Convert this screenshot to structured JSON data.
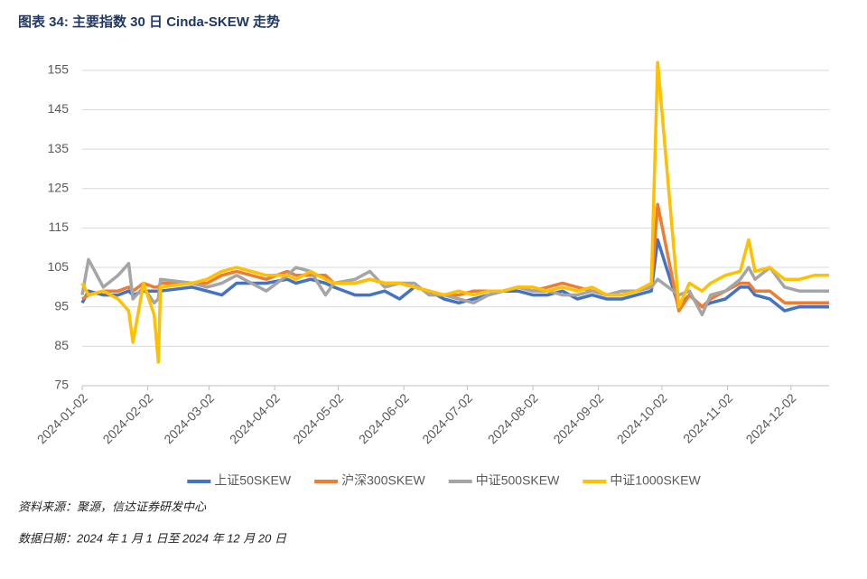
{
  "title": "图表 34:  主要指数 30 日 Cinda-SKEW 走势",
  "source": "资料来源：聚源，信达证券研发中心",
  "date_note": "数据日期：2024 年 1 月 1 日至 2024 年 12 月 20 日",
  "chart_data": {
    "type": "line",
    "x": [
      "2024-01-02",
      "2024-01-05",
      "2024-01-12",
      "2024-01-19",
      "2024-01-24",
      "2024-01-26",
      "2024-01-31",
      "2024-02-05",
      "2024-02-07",
      "2024-02-08",
      "2024-02-23",
      "2024-03-01",
      "2024-03-08",
      "2024-03-15",
      "2024-03-22",
      "2024-03-29",
      "2024-04-08",
      "2024-04-12",
      "2024-04-19",
      "2024-04-26",
      "2024-04-30",
      "2024-05-10",
      "2024-05-17",
      "2024-05-24",
      "2024-05-31",
      "2024-06-07",
      "2024-06-14",
      "2024-06-21",
      "2024-06-28",
      "2024-07-05",
      "2024-07-12",
      "2024-07-19",
      "2024-07-26",
      "2024-08-02",
      "2024-08-09",
      "2024-08-16",
      "2024-08-23",
      "2024-08-30",
      "2024-09-06",
      "2024-09-13",
      "2024-09-20",
      "2024-09-27",
      "2024-09-30",
      "2024-10-10",
      "2024-10-15",
      "2024-10-21",
      "2024-10-25",
      "2024-11-01",
      "2024-11-08",
      "2024-11-12",
      "2024-11-15",
      "2024-11-22",
      "2024-11-29",
      "2024-12-06",
      "2024-12-13",
      "2024-12-20"
    ],
    "series": [
      {
        "name": "上证50SKEW",
        "color": "#4472c4",
        "values": [
          96,
          99,
          98,
          98,
          99,
          98,
          99,
          99,
          99,
          99,
          100,
          99,
          98,
          101,
          101,
          101,
          102,
          101,
          102,
          101,
          100,
          98,
          98,
          99,
          97,
          100,
          99,
          97,
          96,
          97,
          98,
          99,
          99,
          98,
          98,
          99,
          97,
          98,
          97,
          97,
          98,
          99,
          112,
          95,
          98,
          95,
          96,
          97,
          100,
          100,
          98,
          97,
          94,
          95,
          95,
          95
        ]
      },
      {
        "name": "沪深300SKEW",
        "color": "#ed7d31",
        "values": [
          97,
          98,
          99,
          99,
          100,
          99,
          101,
          100,
          100,
          101,
          101,
          101,
          103,
          104,
          103,
          102,
          104,
          103,
          103,
          103,
          101,
          101,
          102,
          101,
          101,
          100,
          99,
          98,
          98,
          99,
          99,
          99,
          100,
          99,
          100,
          101,
          100,
          99,
          98,
          98,
          99,
          100,
          121,
          94,
          98,
          95,
          97,
          99,
          101,
          101,
          99,
          99,
          96,
          96,
          96,
          96
        ]
      },
      {
        "name": "中证500SKEW",
        "color": "#a5a5a5",
        "values": [
          98,
          107,
          100,
          103,
          106,
          97,
          100,
          96,
          97,
          102,
          101,
          100,
          101,
          103,
          101,
          99,
          103,
          105,
          104,
          98,
          101,
          102,
          104,
          100,
          101,
          101,
          98,
          98,
          97,
          96,
          98,
          99,
          100,
          99,
          99,
          98,
          98,
          99,
          98,
          99,
          99,
          100,
          102,
          98,
          99,
          93,
          98,
          99,
          102,
          105,
          102,
          105,
          100,
          99,
          99,
          99
        ]
      },
      {
        "name": "中证1000SKEW",
        "color": "#ffc000",
        "values": [
          101,
          98,
          99,
          97,
          94,
          86,
          101,
          93,
          81,
          100,
          101,
          102,
          104,
          105,
          104,
          103,
          103,
          102,
          104,
          102,
          101,
          101,
          102,
          101,
          101,
          100,
          99,
          98,
          99,
          98,
          99,
          99,
          100,
          100,
          99,
          100,
          99,
          100,
          98,
          98,
          99,
          101,
          157,
          95,
          101,
          99,
          101,
          103,
          104,
          112,
          104,
          105,
          102,
          102,
          103,
          103
        ]
      }
    ],
    "xlim": [
      "2024-01-02",
      "2024-12-20"
    ],
    "xticks": [
      "2024-01-02",
      "2024-02-02",
      "2024-03-02",
      "2024-04-02",
      "2024-05-02",
      "2024-06-02",
      "2024-07-02",
      "2024-08-02",
      "2024-09-02",
      "2024-10-02",
      "2024-11-02",
      "2024-12-02"
    ],
    "ylim": [
      75,
      160
    ],
    "yticks": [
      75,
      85,
      95,
      105,
      115,
      125,
      135,
      145,
      155
    ],
    "grid": true,
    "legend": "bottom"
  }
}
